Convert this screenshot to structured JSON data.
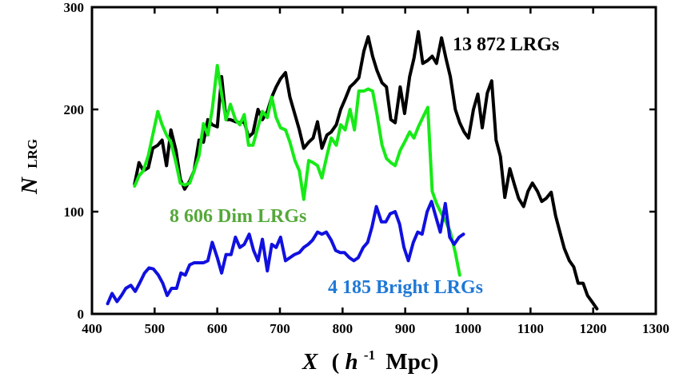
{
  "chart_data": {
    "type": "line",
    "xlabel": {
      "main": "X",
      "open": "(",
      "h": "h",
      "exp": "-1",
      "unit": "Mpc)"
    },
    "ylabel": {
      "main": "N",
      "sub": "LRG"
    },
    "xlim": [
      400,
      1300
    ],
    "ylim": [
      0,
      300
    ],
    "x_ticks": [
      "400",
      "500",
      "600",
      "700",
      "800",
      "900",
      "1000",
      "1100",
      "1200",
      "1300"
    ],
    "y_ticks": [
      "0",
      "100",
      "200",
      "300"
    ],
    "grid": false,
    "series": [
      {
        "name": "13 872 LRGs",
        "color": "#000000",
        "points": [
          [
            468,
            127
          ],
          [
            475,
            148
          ],
          [
            482,
            140
          ],
          [
            490,
            143
          ],
          [
            497,
            162
          ],
          [
            505,
            165
          ],
          [
            512,
            170
          ],
          [
            519,
            145
          ],
          [
            526,
            180
          ],
          [
            534,
            160
          ],
          [
            541,
            132
          ],
          [
            548,
            122
          ],
          [
            556,
            130
          ],
          [
            563,
            140
          ],
          [
            571,
            170
          ],
          [
            578,
            168
          ],
          [
            585,
            190
          ],
          [
            592,
            185
          ],
          [
            600,
            183
          ],
          [
            607,
            232
          ],
          [
            614,
            190
          ],
          [
            621,
            190
          ],
          [
            629,
            188
          ],
          [
            636,
            187
          ],
          [
            643,
            188
          ],
          [
            650,
            173
          ],
          [
            657,
            177
          ],
          [
            665,
            200
          ],
          [
            672,
            190
          ],
          [
            680,
            198
          ],
          [
            687,
            212
          ],
          [
            694,
            222
          ],
          [
            701,
            230
          ],
          [
            709,
            236
          ],
          [
            716,
            212
          ],
          [
            724,
            195
          ],
          [
            731,
            180
          ],
          [
            738,
            162
          ],
          [
            746,
            168
          ],
          [
            753,
            172
          ],
          [
            760,
            188
          ],
          [
            767,
            162
          ],
          [
            775,
            175
          ],
          [
            782,
            178
          ],
          [
            790,
            185
          ],
          [
            797,
            200
          ],
          [
            804,
            210
          ],
          [
            812,
            222
          ],
          [
            819,
            226
          ],
          [
            826,
            231
          ],
          [
            834,
            257
          ],
          [
            841,
            271
          ],
          [
            848,
            252
          ],
          [
            855,
            238
          ],
          [
            863,
            226
          ],
          [
            870,
            222
          ],
          [
            877,
            190
          ],
          [
            884,
            187
          ],
          [
            892,
            222
          ],
          [
            899,
            196
          ],
          [
            907,
            232
          ],
          [
            914,
            250
          ],
          [
            921,
            276
          ],
          [
            928,
            245
          ],
          [
            936,
            248
          ],
          [
            943,
            252
          ],
          [
            950,
            245
          ],
          [
            958,
            270
          ],
          [
            965,
            250
          ],
          [
            972,
            232
          ],
          [
            980,
            200
          ],
          [
            987,
            187
          ],
          [
            994,
            178
          ],
          [
            1001,
            172
          ],
          [
            1009,
            200
          ],
          [
            1016,
            215
          ],
          [
            1023,
            182
          ],
          [
            1031,
            216
          ],
          [
            1038,
            228
          ],
          [
            1045,
            170
          ],
          [
            1052,
            154
          ],
          [
            1059,
            114
          ],
          [
            1067,
            142
          ],
          [
            1074,
            127
          ],
          [
            1081,
            113
          ],
          [
            1089,
            105
          ],
          [
            1096,
            120
          ],
          [
            1103,
            128
          ],
          [
            1111,
            120
          ],
          [
            1118,
            110
          ],
          [
            1125,
            113
          ],
          [
            1133,
            119
          ],
          [
            1140,
            96
          ],
          [
            1147,
            80
          ],
          [
            1154,
            64
          ],
          [
            1162,
            52
          ],
          [
            1169,
            46
          ],
          [
            1176,
            30
          ],
          [
            1184,
            30
          ],
          [
            1191,
            18
          ],
          [
            1198,
            12
          ],
          [
            1206,
            5
          ]
        ]
      },
      {
        "name": "8 606 Dim LRGs",
        "color": "#17ea17",
        "label_color": "#55a83a",
        "points": [
          [
            468,
            125
          ],
          [
            475,
            135
          ],
          [
            482,
            140
          ],
          [
            490,
            155
          ],
          [
            497,
            175
          ],
          [
            505,
            198
          ],
          [
            512,
            185
          ],
          [
            519,
            175
          ],
          [
            526,
            168
          ],
          [
            534,
            148
          ],
          [
            541,
            128
          ],
          [
            548,
            126
          ],
          [
            556,
            128
          ],
          [
            563,
            140
          ],
          [
            571,
            155
          ],
          [
            578,
            186
          ],
          [
            585,
            175
          ],
          [
            592,
            200
          ],
          [
            600,
            243
          ],
          [
            607,
            215
          ],
          [
            614,
            190
          ],
          [
            621,
            205
          ],
          [
            629,
            190
          ],
          [
            636,
            185
          ],
          [
            643,
            195
          ],
          [
            650,
            165
          ],
          [
            657,
            165
          ],
          [
            665,
            183
          ],
          [
            672,
            198
          ],
          [
            680,
            192
          ],
          [
            687,
            212
          ],
          [
            694,
            192
          ],
          [
            701,
            182
          ],
          [
            709,
            180
          ],
          [
            716,
            168
          ],
          [
            724,
            150
          ],
          [
            731,
            140
          ],
          [
            738,
            112
          ],
          [
            746,
            150
          ],
          [
            753,
            148
          ],
          [
            760,
            145
          ],
          [
            767,
            133
          ],
          [
            775,
            155
          ],
          [
            782,
            172
          ],
          [
            790,
            165
          ],
          [
            797,
            185
          ],
          [
            804,
            180
          ],
          [
            812,
            200
          ],
          [
            819,
            180
          ],
          [
            826,
            218
          ],
          [
            834,
            218
          ],
          [
            841,
            220
          ],
          [
            848,
            218
          ],
          [
            855,
            195
          ],
          [
            863,
            165
          ],
          [
            870,
            152
          ],
          [
            877,
            148
          ],
          [
            884,
            145
          ],
          [
            892,
            160
          ],
          [
            899,
            168
          ],
          [
            907,
            178
          ],
          [
            914,
            172
          ],
          [
            921,
            183
          ],
          [
            928,
            192
          ],
          [
            936,
            202
          ],
          [
            943,
            120
          ],
          [
            950,
            108
          ],
          [
            958,
            98
          ],
          [
            965,
            90
          ],
          [
            972,
            80
          ],
          [
            980,
            60
          ],
          [
            987,
            38
          ]
        ]
      },
      {
        "name": "4 185 Bright LRGs",
        "color": "#1010e0",
        "label_color": "#1f78d6",
        "points": [
          [
            425,
            10
          ],
          [
            432,
            20
          ],
          [
            440,
            12
          ],
          [
            447,
            18
          ],
          [
            454,
            25
          ],
          [
            462,
            28
          ],
          [
            469,
            22
          ],
          [
            476,
            30
          ],
          [
            484,
            40
          ],
          [
            491,
            45
          ],
          [
            498,
            44
          ],
          [
            506,
            38
          ],
          [
            513,
            30
          ],
          [
            520,
            18
          ],
          [
            527,
            25
          ],
          [
            535,
            25
          ],
          [
            542,
            40
          ],
          [
            549,
            38
          ],
          [
            556,
            48
          ],
          [
            563,
            50
          ],
          [
            571,
            50
          ],
          [
            578,
            50
          ],
          [
            585,
            52
          ],
          [
            592,
            70
          ],
          [
            600,
            55
          ],
          [
            607,
            40
          ],
          [
            614,
            58
          ],
          [
            622,
            58
          ],
          [
            629,
            75
          ],
          [
            636,
            65
          ],
          [
            643,
            68
          ],
          [
            651,
            78
          ],
          [
            658,
            62
          ],
          [
            665,
            52
          ],
          [
            672,
            73
          ],
          [
            680,
            42
          ],
          [
            687,
            68
          ],
          [
            694,
            65
          ],
          [
            701,
            75
          ],
          [
            709,
            52
          ],
          [
            716,
            55
          ],
          [
            723,
            58
          ],
          [
            731,
            60
          ],
          [
            738,
            65
          ],
          [
            745,
            68
          ],
          [
            752,
            72
          ],
          [
            760,
            80
          ],
          [
            767,
            78
          ],
          [
            774,
            80
          ],
          [
            782,
            72
          ],
          [
            789,
            62
          ],
          [
            796,
            60
          ],
          [
            803,
            60
          ],
          [
            811,
            55
          ],
          [
            818,
            52
          ],
          [
            825,
            55
          ],
          [
            833,
            65
          ],
          [
            840,
            70
          ],
          [
            847,
            85
          ],
          [
            854,
            105
          ],
          [
            862,
            90
          ],
          [
            869,
            90
          ],
          [
            876,
            98
          ],
          [
            884,
            100
          ],
          [
            891,
            88
          ],
          [
            898,
            65
          ],
          [
            905,
            52
          ],
          [
            913,
            70
          ],
          [
            920,
            80
          ],
          [
            927,
            78
          ],
          [
            935,
            100
          ],
          [
            942,
            110
          ],
          [
            949,
            95
          ],
          [
            956,
            80
          ],
          [
            964,
            108
          ],
          [
            971,
            75
          ],
          [
            978,
            68
          ],
          [
            986,
            75
          ],
          [
            993,
            78
          ]
        ]
      }
    ],
    "series_labels": [
      "13 872 LRGs",
      "8 606 Dim LRGs",
      "4 185 Bright LRGs"
    ]
  }
}
